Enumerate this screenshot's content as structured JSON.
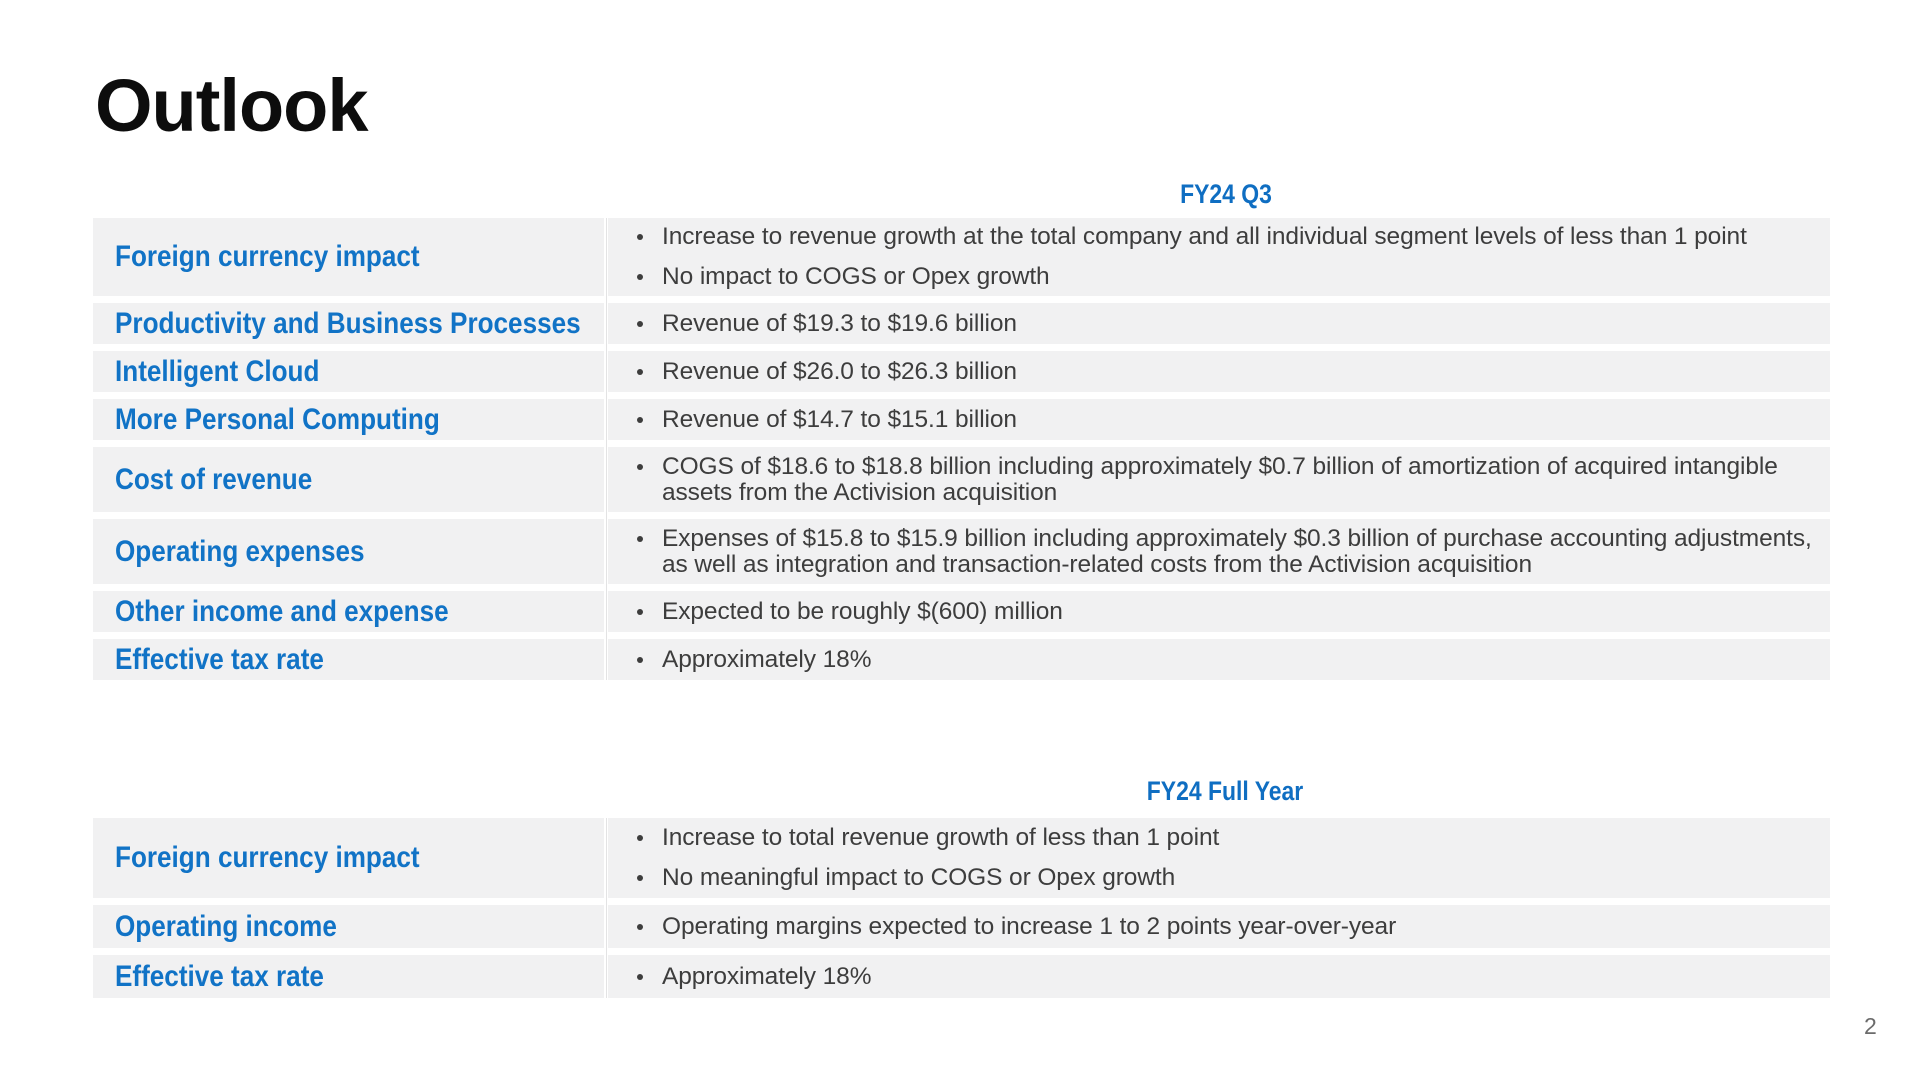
{
  "slide": {
    "title": "Outlook",
    "page_number": "2",
    "colors": {
      "accent_blue": "#1173c6",
      "header_blue": "#0f6ec2",
      "row_background": "#f1f1f2",
      "body_text": "#3d3d3d",
      "title_text": "#0d0d0d",
      "page_number_gray": "#6b6b6b"
    },
    "tables": [
      {
        "header": "FY24 Q3",
        "rows": [
          {
            "label": "Foreign currency impact",
            "bullets": [
              "Increase to revenue growth at the total company and all individual segment levels of less than 1 point",
              "No impact to COGS or Opex growth"
            ]
          },
          {
            "label": "Productivity and Business Processes",
            "bullets": [
              "Revenue of $19.3 to $19.6 billion"
            ]
          },
          {
            "label": "Intelligent Cloud",
            "bullets": [
              "Revenue of $26.0 to $26.3 billion"
            ]
          },
          {
            "label": "More Personal Computing",
            "bullets": [
              "Revenue of $14.7 to $15.1 billion"
            ]
          },
          {
            "label": "Cost of revenue",
            "bullets": [
              "COGS of $18.6 to $18.8 billion including approximately $0.7 billion of amortization of acquired intangible assets from the Activision acquisition"
            ]
          },
          {
            "label": "Operating expenses",
            "bullets": [
              "Expenses of $15.8 to $15.9 billion including approximately $0.3 billion of purchase accounting adjustments, as well as integration and transaction-related costs from the Activision acquisition"
            ]
          },
          {
            "label": "Other income and expense",
            "bullets": [
              "Expected to be roughly $(600) million"
            ]
          },
          {
            "label": "Effective tax rate",
            "bullets": [
              "Approximately 18%"
            ]
          }
        ]
      },
      {
        "header": "FY24 Full Year",
        "rows": [
          {
            "label": "Foreign currency impact",
            "bullets": [
              "Increase to total revenue growth of less than 1 point",
              "No meaningful impact to COGS or Opex growth"
            ]
          },
          {
            "label": "Operating income",
            "bullets": [
              "Operating margins expected to increase 1 to 2 points year-over-year"
            ]
          },
          {
            "label": "Effective tax rate",
            "bullets": [
              "Approximately 18%"
            ]
          }
        ]
      }
    ]
  }
}
